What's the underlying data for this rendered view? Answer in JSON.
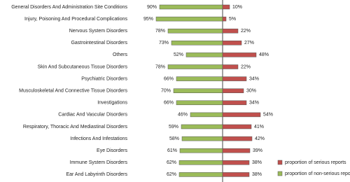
{
  "chart_data": {
    "type": "diverging-bar",
    "categories": [
      "General Disorders And Administration Site Conditions",
      "Injury, Poisoning And Procedural Complications",
      "Nervous System Disorders",
      "Gastrointestinal Disorders",
      "Others",
      "Skin And Subcutaneous Tissue Disorders",
      "Psychiatric Disorders",
      "Musculoskeletal And Connective Tissue Disorders",
      "Investigations",
      "Cardiac And Vascular Disorders",
      "Respiratory, Thoracic And Mediastinal Disorders",
      "Infections And Infestations",
      "Eye Disorders",
      "Immune System Disorders",
      "Ear And Labyrinth Disorders"
    ],
    "series": [
      {
        "name": "proportion of non-serious reports",
        "color": "#9bbb59",
        "values": [
          90,
          95,
          78,
          73,
          52,
          78,
          66,
          70,
          66,
          46,
          59,
          58,
          61,
          62,
          62
        ],
        "value_labels": [
          "90%",
          "95%",
          "78%",
          "73%",
          "52%",
          "78%",
          "66%",
          "70%",
          "66%",
          "46%",
          "59%",
          "58%",
          "61%",
          "62%",
          "62%"
        ]
      },
      {
        "name": "proportion of serious reports",
        "color": "#c0504d",
        "values": [
          10,
          5,
          22,
          27,
          48,
          22,
          34,
          30,
          34,
          54,
          41,
          42,
          39,
          38,
          38
        ],
        "value_labels": [
          "10%",
          "5%",
          "22%",
          "27%",
          "48%",
          "22%",
          "34%",
          "30%",
          "34%",
          "54%",
          "41%",
          "42%",
          "39%",
          "38%",
          "38%"
        ]
      }
    ]
  }
}
